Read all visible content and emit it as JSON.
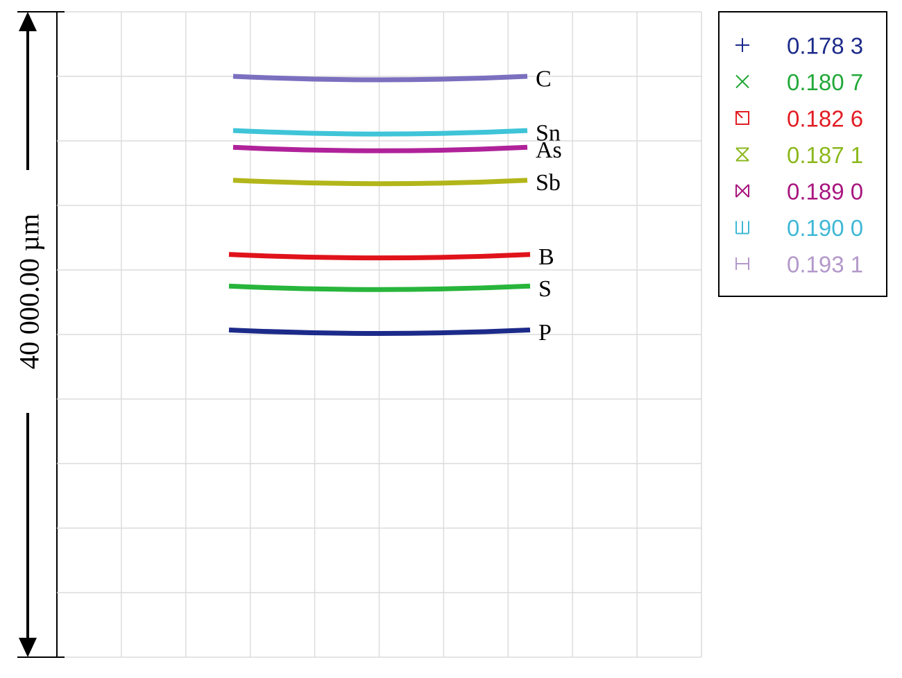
{
  "chart_data": {
    "type": "line",
    "title": "",
    "xlabel": "",
    "ylabel": "40 000.00 µm",
    "grid": true,
    "legend_position": "top-right",
    "series": [
      {
        "label": "C",
        "legend_value": "0.193 1",
        "marker": "bar-ends-icon",
        "color": "#7b6fbf",
        "legend_color": "#b398c9",
        "level": 0.9
      },
      {
        "label": "Sn",
        "legend_value": "0.190 0",
        "marker": "open-bracket-icon",
        "color": "#3fc4d8",
        "legend_color": "#3fb8d6",
        "level": 0.816
      },
      {
        "label": "As",
        "legend_value": "0.189 0",
        "marker": "bowtie-box-icon",
        "color": "#b0229a",
        "legend_color": "#a8167f",
        "level": 0.79
      },
      {
        "label": "Sb",
        "legend_value": "0.187 1",
        "marker": "hourglass-icon",
        "color": "#b2b61a",
        "legend_color": "#8bb81c",
        "level": 0.739
      },
      {
        "label": "B",
        "legend_value": "0.182 6",
        "marker": "square-slash-icon",
        "color": "#e0131b",
        "legend_color": "#e21d24",
        "level": 0.624
      },
      {
        "label": "S",
        "legend_value": "0.180 7",
        "marker": "x-icon",
        "color": "#27b53b",
        "legend_color": "#22a838",
        "level": 0.575
      },
      {
        "label": "P",
        "legend_value": "0.178 3",
        "marker": "plus-icon",
        "color": "#1c2a8a",
        "legend_color": "#1c2a8a",
        "level": 0.507
      }
    ]
  }
}
